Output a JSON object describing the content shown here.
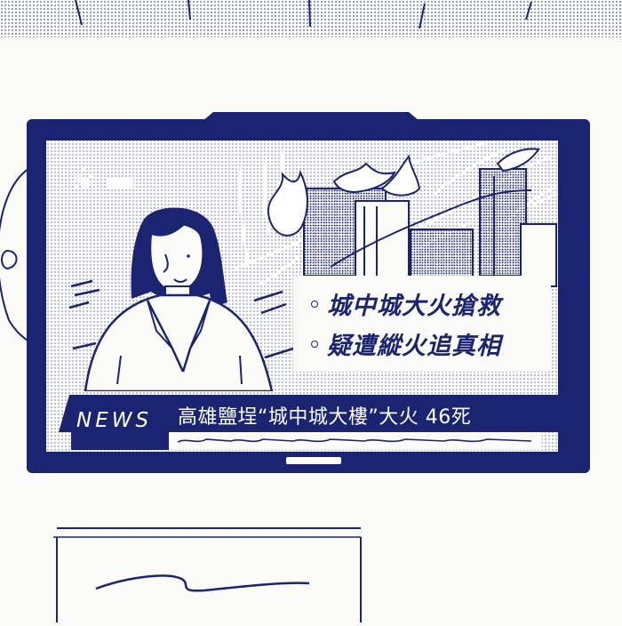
{
  "broadcast": {
    "logo_text": "",
    "caption": {
      "line1": "城中城大火搶救",
      "line2": "疑遭縱火追真相"
    },
    "ticker": {
      "label": "NEWS",
      "headline": "高雄鹽埕“城中城大樓”大火 46死"
    }
  },
  "colors": {
    "ink": "#1b2470",
    "paper": "#fbfbf9",
    "white": "#ffffff"
  }
}
